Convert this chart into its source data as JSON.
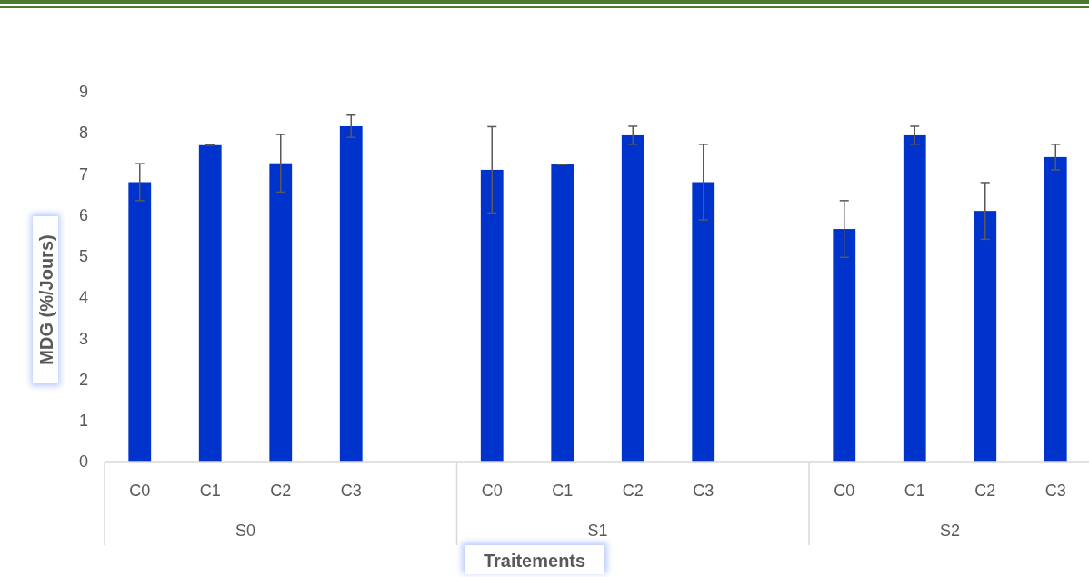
{
  "chart_data": {
    "type": "bar",
    "ylabel": "MDG (%/Jours)",
    "xlabel": "Traitements",
    "categories": [
      "C0",
      "C1",
      "C2",
      "C3",
      null,
      "C0",
      "C1",
      "C2",
      "C3",
      null,
      "C0",
      "C1",
      "C2",
      "C3"
    ],
    "values": [
      6.8,
      7.7,
      7.26,
      8.16,
      null,
      7.1,
      7.23,
      7.94,
      6.8,
      null,
      5.66,
      7.94,
      6.1,
      7.41
    ],
    "errors": [
      0.45,
      0,
      0.7,
      0.27,
      null,
      1.05,
      0,
      0.22,
      0.92,
      null,
      0.69,
      0.22,
      0.69,
      0.31
    ],
    "color": "#0033cc",
    "ylim": [
      0,
      9
    ],
    "yticks": [
      0,
      1,
      2,
      3,
      4,
      5,
      6,
      7,
      8,
      9
    ],
    "annotations": [
      "S0",
      "S1",
      "S2"
    ],
    "grid": false
  }
}
